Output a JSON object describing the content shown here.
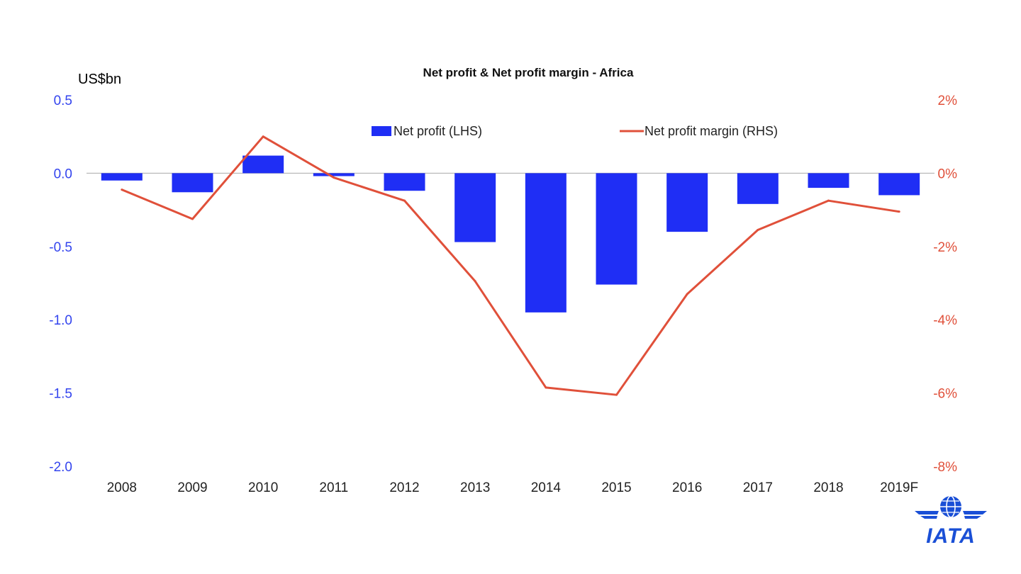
{
  "chart_data": {
    "type": "bar",
    "title": "Net profit & Net profit margin - Africa",
    "categories": [
      "2008",
      "2009",
      "2010",
      "2011",
      "2012",
      "2013",
      "2014",
      "2015",
      "2016",
      "2017",
      "2018",
      "2019F"
    ],
    "left_axis": {
      "unit_label": "US$bn",
      "ticks": [
        "0.5",
        "0.0",
        "-0.5",
        "-1.0",
        "-1.5",
        "-2.0"
      ],
      "ylim": [
        -2.0,
        0.5
      ],
      "color": "#3344ee"
    },
    "right_axis": {
      "ticks": [
        "2%",
        "0%",
        "-2%",
        "-4%",
        "-6%",
        "-8%"
      ],
      "ylim": [
        -8,
        2
      ],
      "color": "#e0503a"
    },
    "series": [
      {
        "name": "Net profit (LHS)",
        "type": "bar",
        "axis": "left",
        "color": "#1f2ef5",
        "values": [
          -0.05,
          -0.13,
          0.12,
          -0.02,
          -0.12,
          -0.47,
          -0.95,
          -0.76,
          -0.4,
          -0.21,
          -0.1,
          -0.15
        ]
      },
      {
        "name": "Net profit margin (RHS)",
        "type": "line",
        "axis": "right",
        "color": "#e0503a",
        "values": [
          -0.45,
          -1.25,
          1.0,
          -0.12,
          -0.75,
          -2.95,
          -5.85,
          -6.05,
          -3.3,
          -1.55,
          -0.75,
          -1.05
        ]
      }
    ],
    "legend_position": "top"
  },
  "logo": {
    "text": "IATA",
    "icon": "iata-globe-logo",
    "color": "#1a4fd6"
  }
}
